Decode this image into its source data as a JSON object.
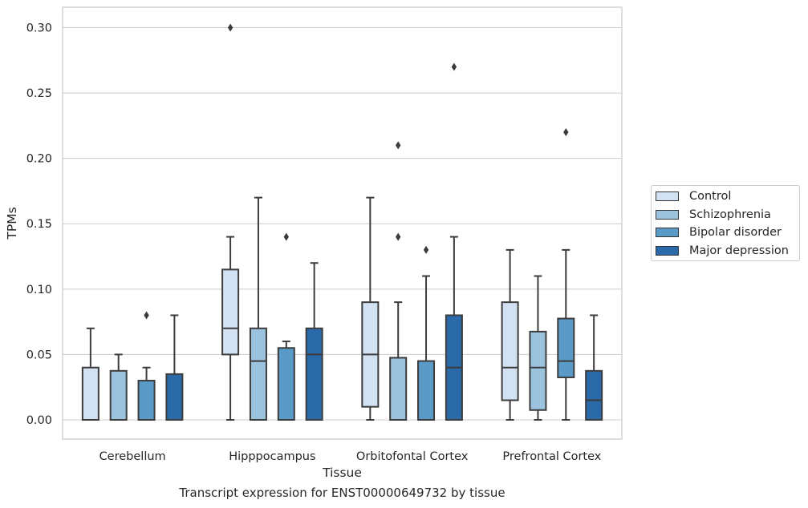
{
  "chart_data": {
    "type": "boxplot",
    "xlabel": "Tissue",
    "ylabel": "TPMs",
    "caption": "Transcript expression for ENST00000649732 by tissue",
    "ylim": [
      -0.015,
      0.315
    ],
    "yticks": [
      0.0,
      0.05,
      0.1,
      0.15,
      0.2,
      0.25,
      0.3
    ],
    "ytick_labels": [
      "0.00",
      "0.05",
      "0.10",
      "0.15",
      "0.20",
      "0.25",
      "0.30"
    ],
    "grid": "horizontal",
    "legend_position": "right",
    "categories": [
      "Cerebellum",
      "Hipppocampus",
      "Orbitofontal Cortex",
      "Prefrontal Cortex"
    ],
    "series": [
      {
        "name": "Control",
        "color": "#d2e2f2",
        "boxes": [
          {
            "whislo": 0.0,
            "q1": 0.0,
            "med": 0.0,
            "q3": 0.04,
            "whishi": 0.07,
            "fliers": []
          },
          {
            "whislo": 0.0,
            "q1": 0.05,
            "med": 0.07,
            "q3": 0.115,
            "whishi": 0.14,
            "fliers": [
              0.3
            ]
          },
          {
            "whislo": 0.0,
            "q1": 0.01,
            "med": 0.05,
            "q3": 0.09,
            "whishi": 0.17,
            "fliers": []
          },
          {
            "whislo": 0.0,
            "q1": 0.015,
            "med": 0.04,
            "q3": 0.09,
            "whishi": 0.13,
            "fliers": []
          }
        ]
      },
      {
        "name": "Schizophrenia",
        "color": "#9bc3de",
        "boxes": [
          {
            "whislo": 0.0,
            "q1": 0.0,
            "med": 0.0,
            "q3": 0.0375,
            "whishi": 0.05,
            "fliers": []
          },
          {
            "whislo": 0.0,
            "q1": 0.0,
            "med": 0.045,
            "q3": 0.07,
            "whishi": 0.17,
            "fliers": []
          },
          {
            "whislo": 0.0,
            "q1": 0.0,
            "med": 0.0,
            "q3": 0.0475,
            "whishi": 0.09,
            "fliers": [
              0.21,
              0.14
            ]
          },
          {
            "whislo": 0.0,
            "q1": 0.0075,
            "med": 0.04,
            "q3": 0.0675,
            "whishi": 0.11,
            "fliers": []
          }
        ]
      },
      {
        "name": "Bipolar disorder",
        "color": "#5a9ac7",
        "boxes": [
          {
            "whislo": 0.0,
            "q1": 0.0,
            "med": 0.0,
            "q3": 0.03,
            "whishi": 0.04,
            "fliers": [
              0.08
            ]
          },
          {
            "whislo": 0.0,
            "q1": 0.0,
            "med": 0.0,
            "q3": 0.055,
            "whishi": 0.06,
            "fliers": [
              0.14
            ]
          },
          {
            "whislo": 0.0,
            "q1": 0.0,
            "med": 0.0,
            "q3": 0.045,
            "whishi": 0.11,
            "fliers": [
              0.13
            ]
          },
          {
            "whislo": 0.0,
            "q1": 0.0325,
            "med": 0.045,
            "q3": 0.0775,
            "whishi": 0.13,
            "fliers": [
              0.22
            ]
          }
        ]
      },
      {
        "name": "Major depression",
        "color": "#2a6aa8",
        "boxes": [
          {
            "whislo": 0.0,
            "q1": 0.0,
            "med": 0.0,
            "q3": 0.035,
            "whishi": 0.08,
            "fliers": []
          },
          {
            "whislo": 0.0,
            "q1": 0.0,
            "med": 0.05,
            "q3": 0.07,
            "whishi": 0.12,
            "fliers": []
          },
          {
            "whislo": 0.0,
            "q1": 0.0,
            "med": 0.04,
            "q3": 0.08,
            "whishi": 0.14,
            "fliers": [
              0.27
            ]
          },
          {
            "whislo": 0.0,
            "q1": 0.0,
            "med": 0.015,
            "q3": 0.0375,
            "whishi": 0.08,
            "fliers": []
          }
        ]
      }
    ]
  }
}
